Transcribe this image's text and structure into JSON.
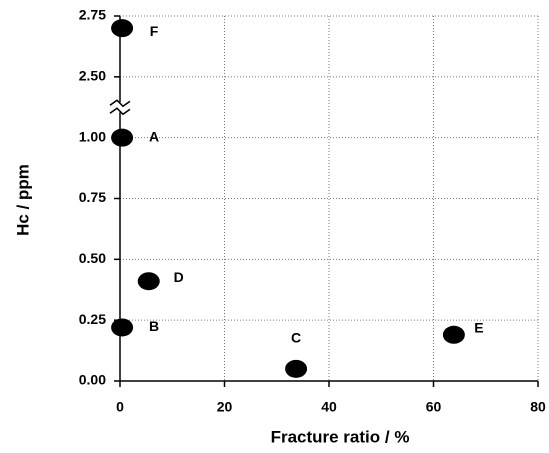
{
  "chart_data": {
    "type": "scatter",
    "x_label": "Fracture ratio / %",
    "y_label": "Hc / ppm",
    "x": [
      0.4,
      0.4,
      0.4,
      5.5,
      33.7,
      63.9
    ],
    "values": [
      2.7,
      1.0,
      0.22,
      0.41,
      0.05,
      0.19
    ],
    "labels": [
      "F",
      "A",
      "B",
      "D",
      "C",
      "E"
    ],
    "color": "#000000",
    "xlim": [
      0,
      80
    ],
    "xticks": [
      0,
      20,
      40,
      60,
      80
    ],
    "ylim": [
      0,
      2.75
    ],
    "y_break": [
      1.125,
      2.375
    ],
    "yticks": [
      {
        "value": 0,
        "label": "0.00"
      },
      {
        "value": 0.25,
        "label": "0.25"
      },
      {
        "value": 0.5,
        "label": "0.50"
      },
      {
        "value": 0.75,
        "label": "0.75"
      },
      {
        "value": 1.0,
        "label": "1.00"
      },
      {
        "value": 2.5,
        "label": "2.50"
      },
      {
        "value": 2.75,
        "label": "2.75"
      }
    ],
    "grid": true
  }
}
